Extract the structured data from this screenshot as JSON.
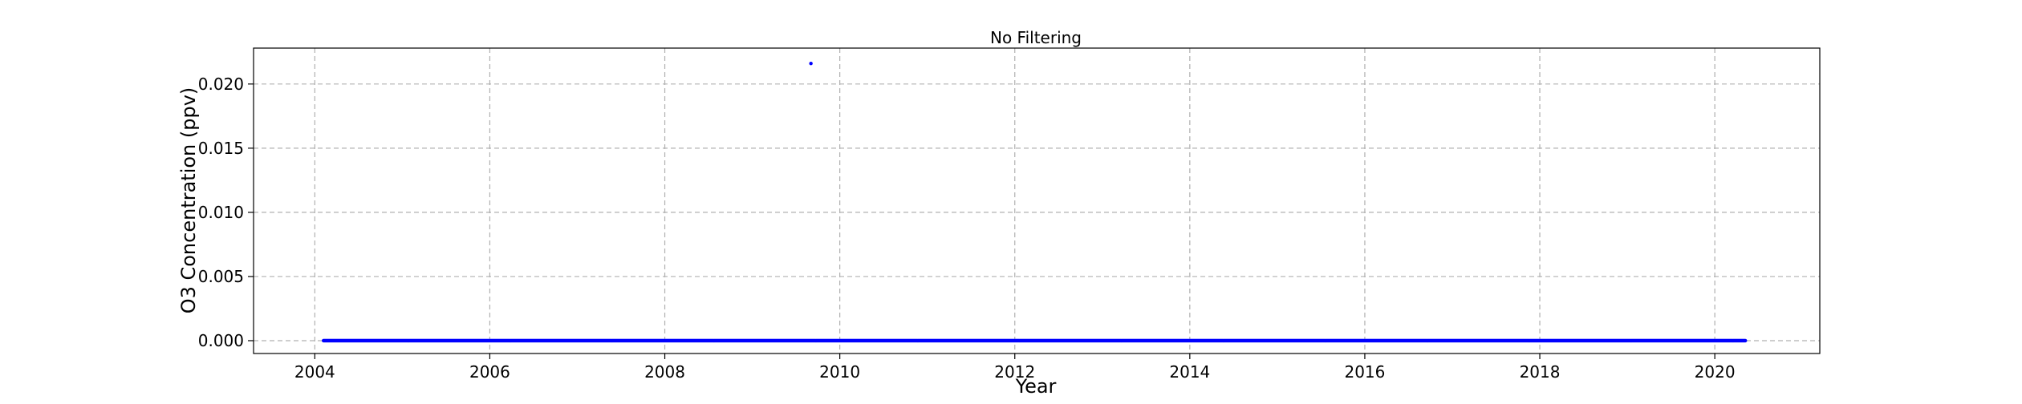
{
  "chart_data": {
    "type": "scatter",
    "title": "No Filtering",
    "xlabel": "Year",
    "ylabel": "O3 Concentration (ppv)",
    "xlim": [
      2003.3,
      2021.2
    ],
    "ylim": [
      -0.001,
      0.0228
    ],
    "x_ticks": [
      2004,
      2006,
      2008,
      2010,
      2012,
      2014,
      2016,
      2018,
      2020
    ],
    "x_tick_labels": [
      "2004",
      "2006",
      "2008",
      "2010",
      "2012",
      "2014",
      "2016",
      "2018",
      "2020"
    ],
    "y_ticks": [
      0.0,
      0.005,
      0.01,
      0.015,
      0.02
    ],
    "y_tick_labels": [
      "0.000",
      "0.005",
      "0.010",
      "0.015",
      "0.020"
    ],
    "grid": true,
    "marker_color": "#0000ff",
    "baseline_range": {
      "x_start": 2004.1,
      "x_end": 2020.35,
      "y": 0.0
    },
    "outliers": [
      {
        "x": 2009.67,
        "y": 0.0216
      }
    ]
  }
}
